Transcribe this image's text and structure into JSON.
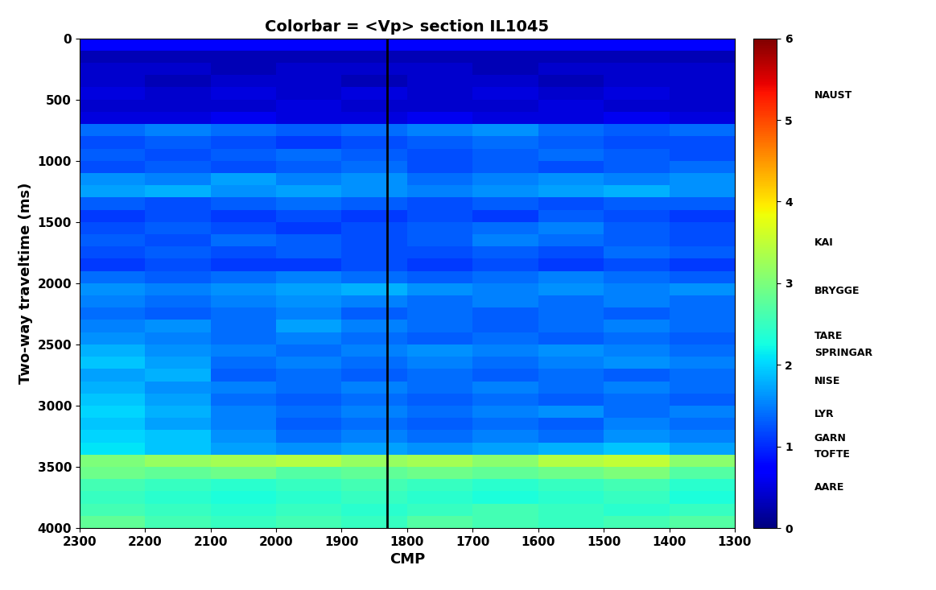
{
  "chart_data": {
    "type": "heatmap",
    "title": "Colorbar = <Vp> section IL1045",
    "x_label": "CMP",
    "y_label": "Two-way traveltime (ms)",
    "xlim": [
      2300,
      1300
    ],
    "xticks": [
      2300,
      2200,
      2100,
      2000,
      1900,
      1800,
      1700,
      1600,
      1500,
      1400,
      1300
    ],
    "ylim": [
      4000,
      0
    ],
    "yticks": [
      0,
      500,
      1000,
      1500,
      2000,
      2500,
      3000,
      3500,
      4000
    ],
    "x_edges": [
      2300,
      2200,
      2100,
      2000,
      1900,
      1800,
      1700,
      1600,
      1500,
      1400,
      1300
    ],
    "y_edges": [
      0,
      100,
      200,
      300,
      400,
      500,
      600,
      700,
      800,
      900,
      1000,
      1100,
      1200,
      1300,
      1400,
      1500,
      1600,
      1700,
      1800,
      1900,
      2000,
      2100,
      2200,
      2300,
      2400,
      2500,
      2600,
      2700,
      2800,
      2900,
      3000,
      3100,
      3200,
      3300,
      3400,
      3500,
      3600,
      3700,
      3800,
      3900,
      4000
    ],
    "cells": [
      [
        0.7,
        0.7,
        0.7,
        0.7,
        0.7,
        0.7,
        0.7,
        0.7,
        0.7,
        0.7
      ],
      [
        0.3,
        0.3,
        0.3,
        0.3,
        0.3,
        0.3,
        0.3,
        0.3,
        0.3,
        0.3
      ],
      [
        0.4,
        0.4,
        0.3,
        0.4,
        0.4,
        0.4,
        0.3,
        0.4,
        0.4,
        0.4
      ],
      [
        0.4,
        0.3,
        0.4,
        0.4,
        0.3,
        0.4,
        0.4,
        0.3,
        0.4,
        0.4
      ],
      [
        0.5,
        0.4,
        0.5,
        0.4,
        0.5,
        0.4,
        0.5,
        0.4,
        0.5,
        0.4
      ],
      [
        0.4,
        0.4,
        0.4,
        0.5,
        0.4,
        0.4,
        0.4,
        0.5,
        0.4,
        0.4
      ],
      [
        0.5,
        0.5,
        0.6,
        0.5,
        0.5,
        0.6,
        0.5,
        0.5,
        0.6,
        0.5
      ],
      [
        1.4,
        1.5,
        1.4,
        1.3,
        1.4,
        1.5,
        1.6,
        1.4,
        1.3,
        1.4
      ],
      [
        1.2,
        1.3,
        1.2,
        1.1,
        1.2,
        1.3,
        1.4,
        1.3,
        1.2,
        1.2
      ],
      [
        1.3,
        1.2,
        1.3,
        1.4,
        1.3,
        1.2,
        1.3,
        1.4,
        1.3,
        1.2
      ],
      [
        1.2,
        1.3,
        1.2,
        1.3,
        1.4,
        1.2,
        1.3,
        1.2,
        1.3,
        1.4
      ],
      [
        1.6,
        1.5,
        1.7,
        1.5,
        1.6,
        1.4,
        1.5,
        1.6,
        1.5,
        1.6
      ],
      [
        1.7,
        1.8,
        1.6,
        1.7,
        1.6,
        1.5,
        1.6,
        1.7,
        1.8,
        1.6
      ],
      [
        1.3,
        1.2,
        1.3,
        1.4,
        1.3,
        1.2,
        1.3,
        1.2,
        1.3,
        1.3
      ],
      [
        1.1,
        1.2,
        1.1,
        1.2,
        1.1,
        1.2,
        1.1,
        1.3,
        1.2,
        1.1
      ],
      [
        1.2,
        1.3,
        1.2,
        1.1,
        1.2,
        1.3,
        1.4,
        1.5,
        1.3,
        1.2
      ],
      [
        1.3,
        1.2,
        1.4,
        1.3,
        1.2,
        1.3,
        1.5,
        1.4,
        1.3,
        1.2
      ],
      [
        1.2,
        1.3,
        1.2,
        1.3,
        1.2,
        1.2,
        1.3,
        1.2,
        1.4,
        1.3
      ],
      [
        1.1,
        1.2,
        1.1,
        1.1,
        1.2,
        1.1,
        1.2,
        1.1,
        1.2,
        1.1
      ],
      [
        1.4,
        1.3,
        1.4,
        1.5,
        1.4,
        1.3,
        1.4,
        1.5,
        1.4,
        1.3
      ],
      [
        1.6,
        1.5,
        1.6,
        1.7,
        1.8,
        1.6,
        1.5,
        1.6,
        1.5,
        1.6
      ],
      [
        1.5,
        1.4,
        1.5,
        1.6,
        1.5,
        1.4,
        1.5,
        1.4,
        1.5,
        1.4
      ],
      [
        1.4,
        1.3,
        1.4,
        1.5,
        1.3,
        1.4,
        1.3,
        1.4,
        1.3,
        1.4
      ],
      [
        1.5,
        1.6,
        1.4,
        1.7,
        1.5,
        1.4,
        1.3,
        1.4,
        1.5,
        1.4
      ],
      [
        1.6,
        1.5,
        1.4,
        1.5,
        1.4,
        1.3,
        1.4,
        1.3,
        1.4,
        1.3
      ],
      [
        1.8,
        1.6,
        1.5,
        1.4,
        1.5,
        1.6,
        1.5,
        1.6,
        1.5,
        1.4
      ],
      [
        1.9,
        1.7,
        1.4,
        1.5,
        1.4,
        1.5,
        1.4,
        1.5,
        1.6,
        1.5
      ],
      [
        1.7,
        1.8,
        1.3,
        1.4,
        1.3,
        1.4,
        1.3,
        1.4,
        1.3,
        1.4
      ],
      [
        1.8,
        1.6,
        1.5,
        1.4,
        1.5,
        1.4,
        1.5,
        1.4,
        1.5,
        1.4
      ],
      [
        1.9,
        1.7,
        1.4,
        1.3,
        1.4,
        1.3,
        1.4,
        1.3,
        1.4,
        1.3
      ],
      [
        2.0,
        1.8,
        1.5,
        1.4,
        1.5,
        1.4,
        1.5,
        1.6,
        1.4,
        1.5
      ],
      [
        1.9,
        1.7,
        1.5,
        1.3,
        1.4,
        1.3,
        1.4,
        1.3,
        1.5,
        1.4
      ],
      [
        2.0,
        1.9,
        1.6,
        1.4,
        1.5,
        1.4,
        1.5,
        1.4,
        1.6,
        1.5
      ],
      [
        2.1,
        1.9,
        1.7,
        1.6,
        1.7,
        1.6,
        1.7,
        1.8,
        1.9,
        1.7
      ],
      [
        3.0,
        3.2,
        3.3,
        3.4,
        3.2,
        3.3,
        3.1,
        3.4,
        3.5,
        3.1
      ],
      [
        2.9,
        2.8,
        2.9,
        2.7,
        2.8,
        2.9,
        2.8,
        2.9,
        3.0,
        2.7
      ],
      [
        2.6,
        2.5,
        2.4,
        2.5,
        2.6,
        2.5,
        2.4,
        2.5,
        2.6,
        2.4
      ],
      [
        2.5,
        2.4,
        2.3,
        2.4,
        2.5,
        2.4,
        2.3,
        2.4,
        2.5,
        2.3
      ],
      [
        2.6,
        2.5,
        2.4,
        2.5,
        2.4,
        2.5,
        2.6,
        2.5,
        2.4,
        2.5
      ],
      [
        2.8,
        2.6,
        2.5,
        2.6,
        2.5,
        2.7,
        2.6,
        2.5,
        2.6,
        2.7
      ]
    ],
    "color_range": [
      0,
      6
    ],
    "color_ticks": [
      0,
      1,
      2,
      3,
      4,
      5,
      6
    ],
    "color_annotations": [
      {
        "value": 5.3,
        "label": "NAUST"
      },
      {
        "value": 3.5,
        "label": "KAI"
      },
      {
        "value": 2.9,
        "label": "BRYGGE"
      },
      {
        "value": 2.35,
        "label": "TARE"
      },
      {
        "value": 2.15,
        "label": "SPRINGAR"
      },
      {
        "value": 1.8,
        "label": "NISE"
      },
      {
        "value": 1.4,
        "label": "LYR"
      },
      {
        "value": 1.1,
        "label": "GARN"
      },
      {
        "value": 0.9,
        "label": "TOFTE"
      },
      {
        "value": 0.5,
        "label": "AARE"
      }
    ],
    "vertical_line_x": 1830
  }
}
